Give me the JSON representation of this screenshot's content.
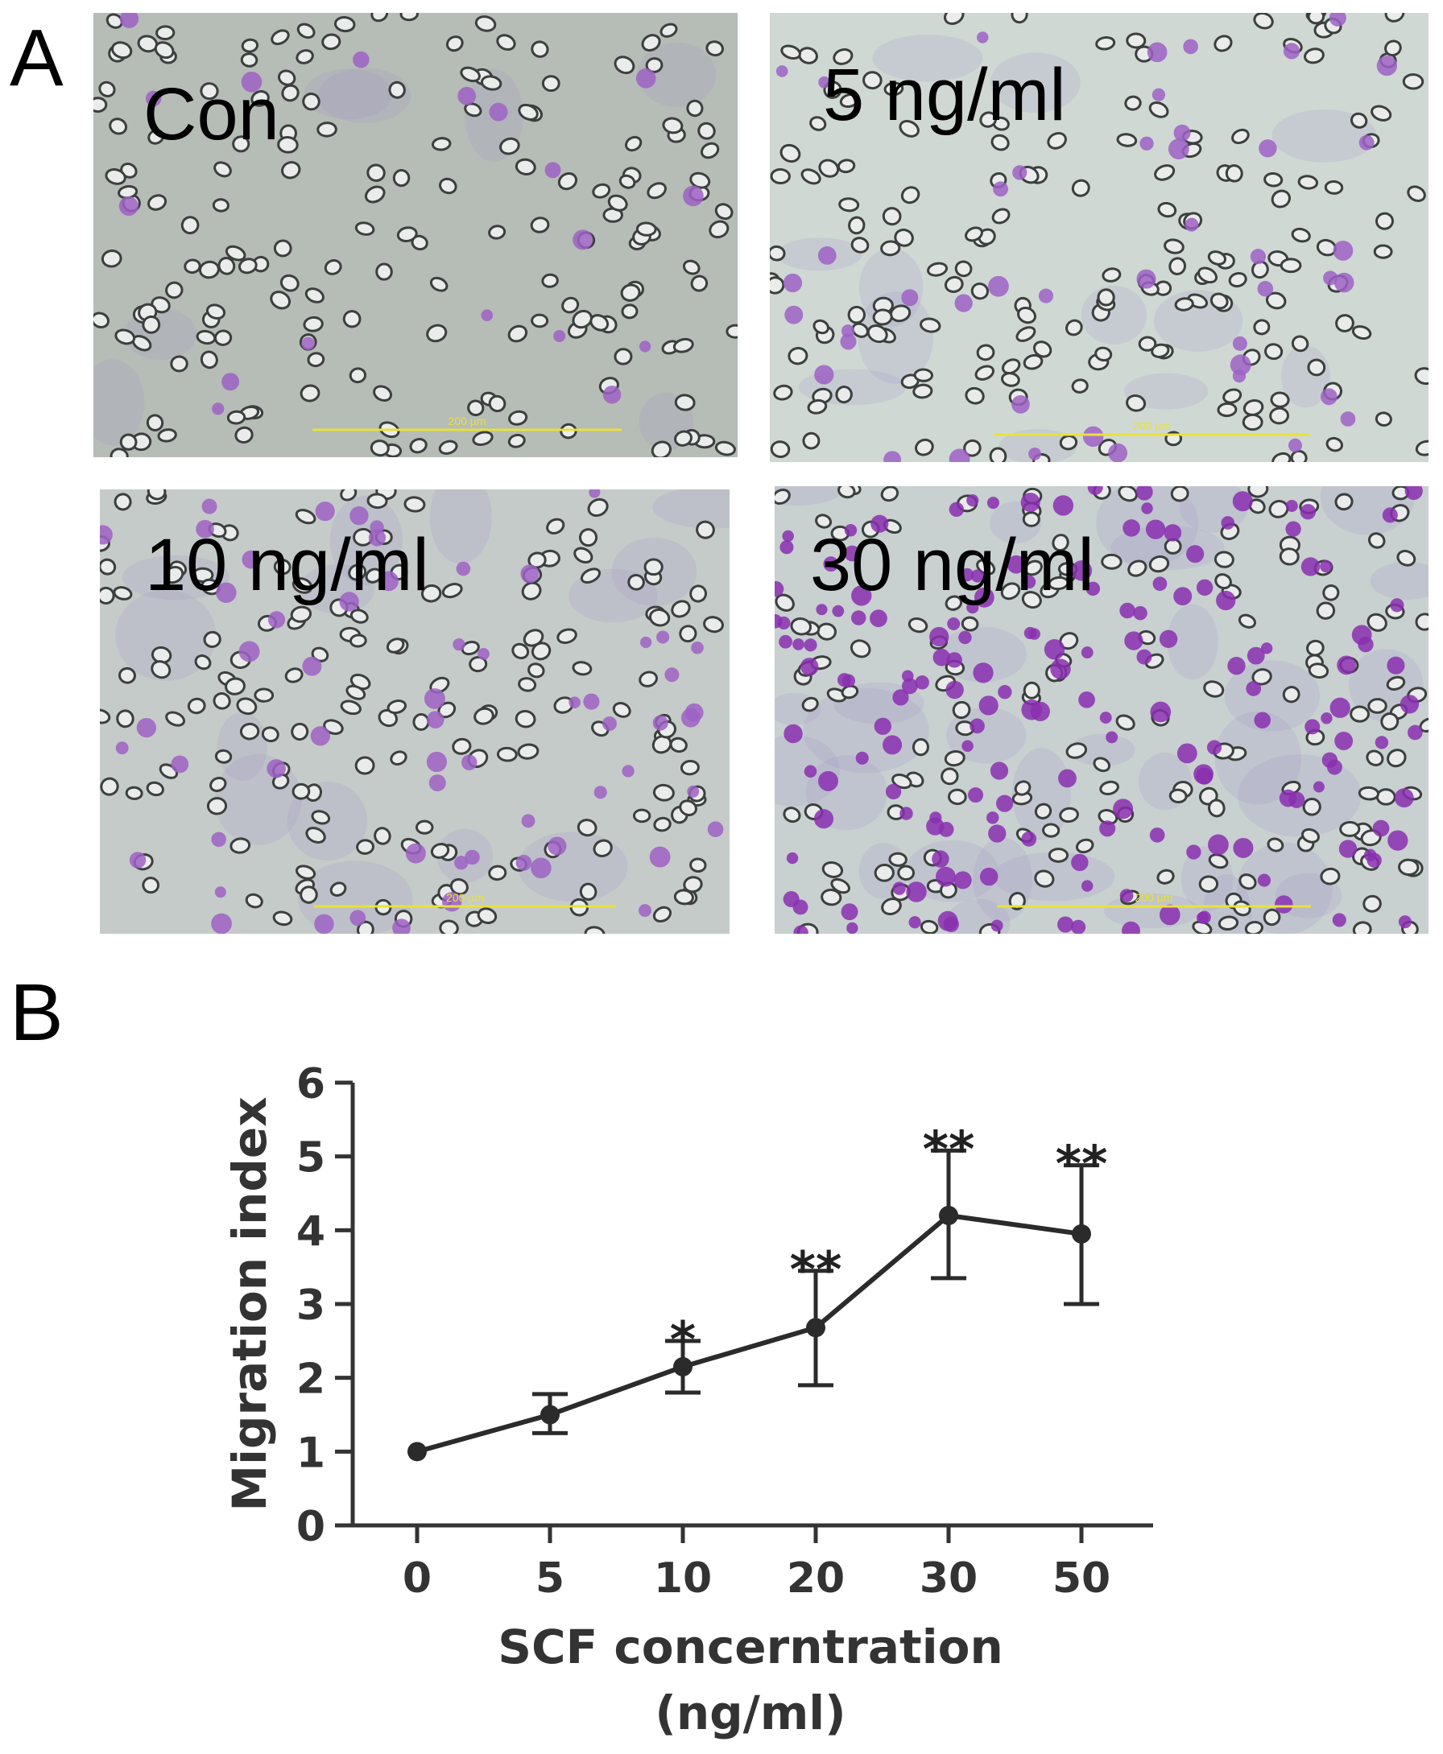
{
  "panel_a": {
    "letter": "A",
    "images": [
      {
        "label": "Con",
        "scale_bar": "200 µm",
        "stained_cells": 18,
        "background": "#b6bcb6"
      },
      {
        "label": "5 ng/ml",
        "scale_bar": "200 µm",
        "stained_cells": 45,
        "background": "#cfd8d3"
      },
      {
        "label": "10 ng/ml",
        "scale_bar": "200 µm",
        "stained_cells": 60,
        "background": "#c5cbc8"
      },
      {
        "label": "30 ng/ml",
        "scale_bar": "200 µm",
        "stained_cells": 170,
        "background": "#c8d0d0"
      }
    ]
  },
  "panel_b": {
    "letter": "B"
  },
  "chart_data": {
    "type": "line",
    "categories": [
      "0",
      "5",
      "10",
      "20",
      "30",
      "50"
    ],
    "series": [
      {
        "values": [
          1.0,
          1.5,
          2.15,
          2.68,
          4.2,
          3.95
        ],
        "error_upper": [
          1.0,
          1.78,
          2.5,
          3.45,
          5.08,
          4.88
        ],
        "error_lower": [
          1.0,
          1.25,
          1.8,
          1.9,
          3.35,
          3.0
        ],
        "significance": [
          "",
          "",
          "*",
          "**",
          "**",
          "**"
        ]
      }
    ],
    "ylabel": "Migration index",
    "xlabel": "SCF concerntration",
    "xlabel_line2": "(ng/ml)",
    "ylim": [
      0,
      6
    ],
    "yticks": [
      "0",
      "1",
      "2",
      "3",
      "4",
      "5",
      "6"
    ],
    "grid": false,
    "line_color": "#2b2b2b"
  }
}
